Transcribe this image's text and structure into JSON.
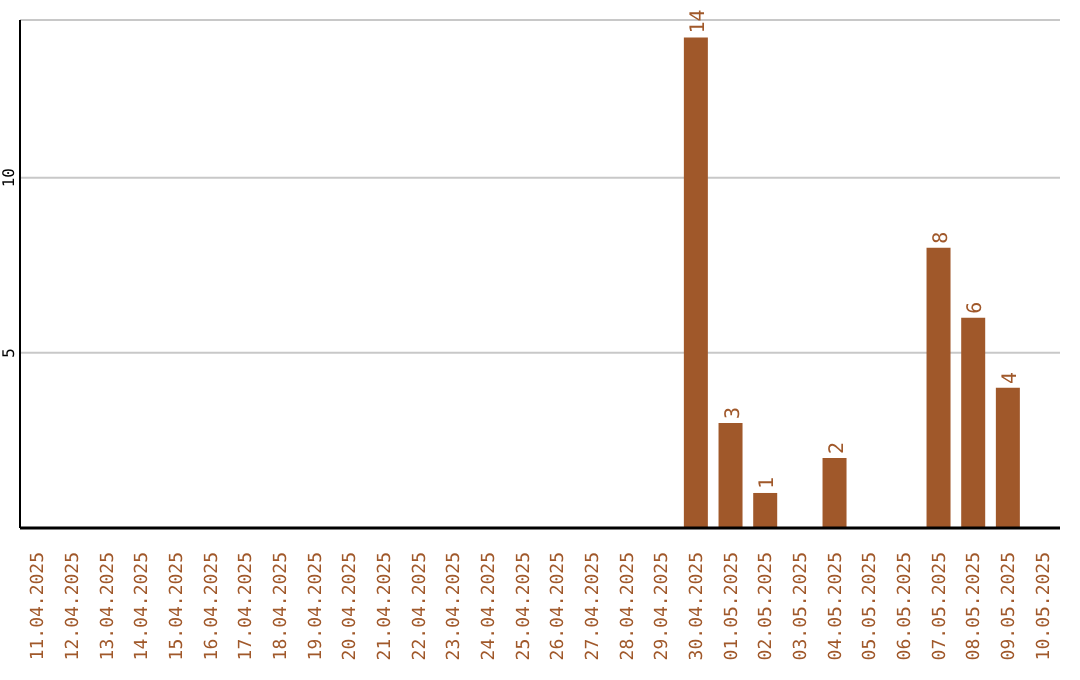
{
  "chart_data": {
    "type": "bar",
    "categories": [
      "11.04.2025",
      "12.04.2025",
      "13.04.2025",
      "14.04.2025",
      "15.04.2025",
      "16.04.2025",
      "17.04.2025",
      "18.04.2025",
      "19.04.2025",
      "20.04.2025",
      "21.04.2025",
      "22.04.2025",
      "23.04.2025",
      "24.04.2025",
      "25.04.2025",
      "26.04.2025",
      "27.04.2025",
      "28.04.2025",
      "29.04.2025",
      "30.04.2025",
      "01.05.2025",
      "02.05.2025",
      "03.05.2025",
      "04.05.2025",
      "05.05.2025",
      "06.05.2025",
      "07.05.2025",
      "08.05.2025",
      "09.05.2025",
      "10.05.2025"
    ],
    "values": [
      null,
      null,
      null,
      null,
      null,
      null,
      null,
      null,
      null,
      null,
      null,
      null,
      null,
      null,
      null,
      null,
      null,
      null,
      null,
      14,
      3,
      1,
      null,
      2,
      null,
      null,
      8,
      6,
      4,
      null
    ],
    "color": "#a0582a",
    "ylim": [
      0,
      14.5
    ],
    "yticks": [
      5,
      10
    ],
    "grid": "y",
    "data_labels": true
  }
}
